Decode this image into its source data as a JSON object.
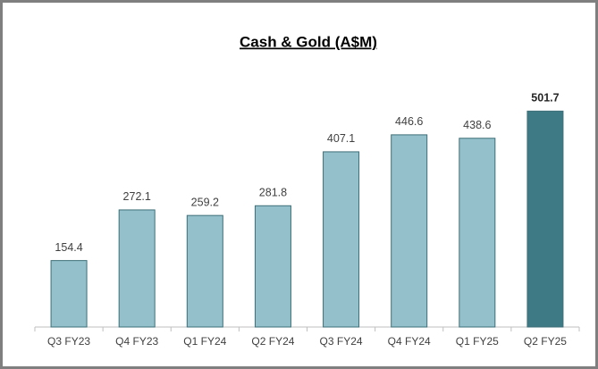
{
  "chart_data": {
    "type": "bar",
    "title": "Cash & Gold (A$M)",
    "categories": [
      "Q3 FY23",
      "Q4 FY23",
      "Q1 FY24",
      "Q2 FY24",
      "Q3 FY24",
      "Q4 FY24",
      "Q1 FY25",
      "Q2 FY25"
    ],
    "values": [
      154.4,
      272.1,
      259.2,
      281.8,
      407.1,
      446.6,
      438.6,
      501.7
    ],
    "colors": [
      "#93c0cb",
      "#93c0cb",
      "#93c0cb",
      "#93c0cb",
      "#93c0cb",
      "#93c0cb",
      "#93c0cb",
      "#3e7a85"
    ],
    "ylim": [
      0,
      600
    ]
  }
}
